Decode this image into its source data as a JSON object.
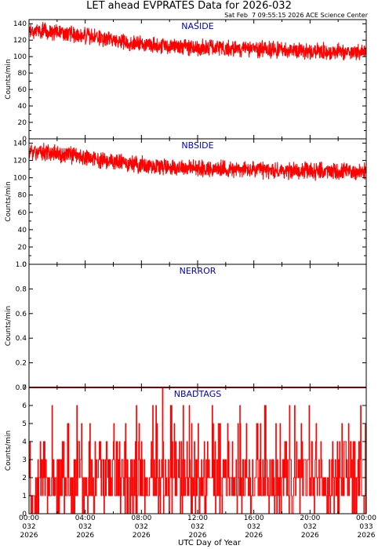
{
  "header": {
    "title": "LET ahead EVPRATES Data for 2026-032",
    "timestamp": "Sat Feb  7 09:55:15 2026 ACE Science Center"
  },
  "colors": {
    "data": "#ff0000",
    "panel_label": "#0000cc",
    "axes": "#000000",
    "background": "#ffffff"
  },
  "x_axis": {
    "title": "UTC Day of Year",
    "ticks": [
      {
        "time": "00:00",
        "doy": "032",
        "year": "2026"
      },
      {
        "time": "04:00",
        "doy": "032",
        "year": "2026"
      },
      {
        "time": "08:00",
        "doy": "032",
        "year": "2026"
      },
      {
        "time": "12:00",
        "doy": "032",
        "year": "2026"
      },
      {
        "time": "16:00",
        "doy": "032",
        "year": "2026"
      },
      {
        "time": "20:00",
        "doy": "032",
        "year": "2026"
      },
      {
        "time": "00:00",
        "doy": "033",
        "year": "2026"
      }
    ]
  },
  "chart_data": [
    {
      "type": "line",
      "title": "NASIDE",
      "ylabel": "Counts/min",
      "xlim_hours": [
        0,
        24
      ],
      "ylim": [
        0,
        145
      ],
      "yticks": [
        0,
        10,
        20,
        30,
        40,
        50,
        60,
        70,
        80,
        90,
        100,
        110,
        120,
        130,
        140
      ],
      "ytick_labels": [
        "0",
        "",
        "20",
        "",
        "40",
        "",
        "60",
        "",
        "80",
        "",
        "100",
        "",
        "120",
        "",
        "140"
      ],
      "series_profile": {
        "hours": [
          0,
          2,
          4,
          6,
          8,
          10,
          12,
          14,
          16,
          18,
          20,
          22,
          24
        ],
        "mean": [
          132,
          130,
          125,
          120,
          116,
          113,
          111,
          110,
          109,
          108,
          107,
          106,
          105
        ],
        "spread": 16
      }
    },
    {
      "type": "line",
      "title": "NBSIDE",
      "ylabel": "Counts/min",
      "xlim_hours": [
        0,
        24
      ],
      "ylim": [
        0,
        145
      ],
      "yticks": [
        0,
        10,
        20,
        30,
        40,
        50,
        60,
        70,
        80,
        90,
        100,
        110,
        120,
        130,
        140
      ],
      "ytick_labels": [
        "0",
        "",
        "20",
        "",
        "40",
        "",
        "60",
        "",
        "80",
        "",
        "100",
        "",
        "120",
        "",
        "140"
      ],
      "series_profile": {
        "hours": [
          0,
          2,
          4,
          6,
          8,
          10,
          12,
          14,
          16,
          18,
          20,
          22,
          24
        ],
        "mean": [
          130,
          128,
          123,
          119,
          115,
          113,
          111,
          110,
          109,
          108,
          108,
          107,
          107
        ],
        "spread": 16
      }
    },
    {
      "type": "line",
      "title": "NERROR",
      "ylabel": "Counts/min",
      "xlim_hours": [
        0,
        24
      ],
      "ylim": [
        0,
        1.0
      ],
      "yticks": [
        0,
        0.2,
        0.4,
        0.6,
        0.8,
        1.0
      ],
      "ytick_labels": [
        "0.0",
        "0.2",
        "0.4",
        "0.6",
        "0.8",
        "1.0"
      ],
      "series_profile": {
        "hours": [
          0,
          24
        ],
        "mean": [
          0,
          0
        ],
        "spread": 0
      }
    },
    {
      "type": "line",
      "title": "NBADTAGS",
      "ylabel": "Counts/min",
      "xlim_hours": [
        0,
        24
      ],
      "ylim": [
        0,
        7
      ],
      "yticks": [
        0,
        1,
        2,
        3,
        4,
        5,
        6,
        7
      ],
      "ytick_labels": [
        "0",
        "1",
        "2",
        "3",
        "4",
        "5",
        "6",
        "7"
      ],
      "series_profile": {
        "hours": [
          0,
          24
        ],
        "values_range": [
          0,
          7
        ],
        "peak": {
          "hour": 9.5,
          "value": 7
        }
      }
    }
  ]
}
